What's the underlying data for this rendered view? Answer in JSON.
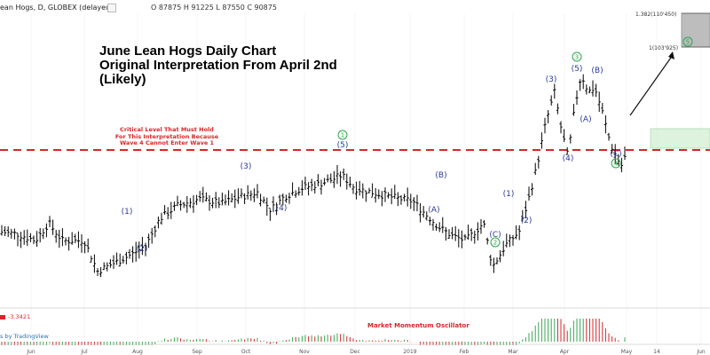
{
  "header": {
    "symbol_text": "ean Hogs, D, GLOBEX (delayed)",
    "ohlc_text": "O 87875  H 91225  L 87550  C 90875"
  },
  "annotations": {
    "title_line1": "June Lean Hogs Daily Chart",
    "title_line2": "Original Interpretation From April 2nd",
    "title_line3": "(Likely)",
    "critical_line1": "Critical Level That Must Hold",
    "critical_line2": "For This Interpretation Because",
    "critical_line3": "Wave 4 Cannot Enter Wave 1"
  },
  "oscillator": {
    "label": "Market Momentum Oscillator",
    "value": "-3.3421",
    "watermark": "s by TradingView"
  },
  "fib_levels": [
    {
      "label": "1.382(110'450)"
    },
    {
      "label": "1(103'925)"
    }
  ],
  "colors": {
    "bars": "#000000",
    "critical_line": "#d62728",
    "wave_label": "#2b3a9a",
    "circle_wave": "#2aa64a",
    "osc_green": "#3aa655",
    "osc_red": "#d62728",
    "target_box": "#bdbdbd",
    "zone_box": "#cfeecf"
  },
  "chart_data": {
    "type": "ohlc",
    "x_ticks": [
      "Jun",
      "Jul",
      "Aug",
      "Sep",
      "Oct",
      "Nov",
      "Dec",
      "2019",
      "Feb",
      "Mar",
      "Apr",
      "May",
      "14",
      "Jun"
    ],
    "critical_level": 79.5,
    "ylim": [
      52,
      118
    ],
    "waves": [
      {
        "label": "(1)",
        "style": "paren",
        "color": "blue"
      },
      {
        "label": "(2)",
        "style": "paren",
        "color": "blue"
      },
      {
        "label": "(3)",
        "style": "paren",
        "color": "blue"
      },
      {
        "label": "(4)",
        "style": "paren",
        "color": "blue"
      },
      {
        "label": "(5)",
        "style": "paren",
        "color": "blue"
      },
      {
        "label": "1",
        "style": "circle",
        "color": "green"
      },
      {
        "label": "(A)",
        "style": "paren",
        "color": "blue"
      },
      {
        "label": "(B)",
        "style": "paren",
        "color": "blue"
      },
      {
        "label": "(C)",
        "style": "paren",
        "color": "blue"
      },
      {
        "label": "2",
        "style": "circle",
        "color": "green"
      },
      {
        "label": "(1)",
        "style": "paren",
        "color": "blue"
      },
      {
        "label": "(2)",
        "style": "paren",
        "color": "blue"
      },
      {
        "label": "(3)",
        "style": "paren",
        "color": "blue"
      },
      {
        "label": "(4)",
        "style": "paren",
        "color": "blue"
      },
      {
        "label": "(5)",
        "style": "paren",
        "color": "blue"
      },
      {
        "label": "3",
        "style": "circle",
        "color": "green"
      },
      {
        "label": "(A)",
        "style": "paren",
        "color": "blue"
      },
      {
        "label": "(B)",
        "style": "paren",
        "color": "blue"
      },
      {
        "label": "(C)",
        "style": "paren",
        "color": "blue"
      },
      {
        "label": "4",
        "style": "circle",
        "color": "green"
      },
      {
        "label": "5",
        "style": "circle",
        "color": "green"
      }
    ],
    "price_path": [
      [
        0,
        68
      ],
      [
        20,
        67.5
      ],
      [
        40,
        66
      ],
      [
        55,
        70
      ],
      [
        70,
        66
      ],
      [
        95,
        66
      ],
      [
        110,
        59
      ],
      [
        130,
        61
      ],
      [
        150,
        63
      ],
      [
        165,
        65
      ],
      [
        180,
        71
      ],
      [
        200,
        74
      ],
      [
        225,
        75.5
      ],
      [
        250,
        74.5
      ],
      [
        270,
        76
      ],
      [
        290,
        77
      ],
      [
        305,
        73
      ],
      [
        320,
        76
      ],
      [
        340,
        78
      ],
      [
        360,
        79
      ],
      [
        375,
        80
      ],
      [
        385,
        81
      ],
      [
        400,
        78
      ],
      [
        420,
        77
      ],
      [
        440,
        76
      ],
      [
        465,
        75
      ],
      [
        480,
        72
      ],
      [
        495,
        69
      ],
      [
        510,
        67
      ],
      [
        525,
        66
      ],
      [
        545,
        70
      ],
      [
        555,
        60
      ],
      [
        570,
        65
      ],
      [
        585,
        68
      ],
      [
        595,
        75
      ],
      [
        605,
        83
      ],
      [
        615,
        93
      ],
      [
        625,
        100
      ],
      [
        632,
        92
      ],
      [
        640,
        85
      ],
      [
        648,
        97
      ],
      [
        655,
        104
      ],
      [
        663,
        100
      ],
      [
        670,
        101
      ],
      [
        678,
        96
      ],
      [
        688,
        88
      ],
      [
        700,
        83
      ],
      [
        706,
        86
      ]
    ]
  }
}
